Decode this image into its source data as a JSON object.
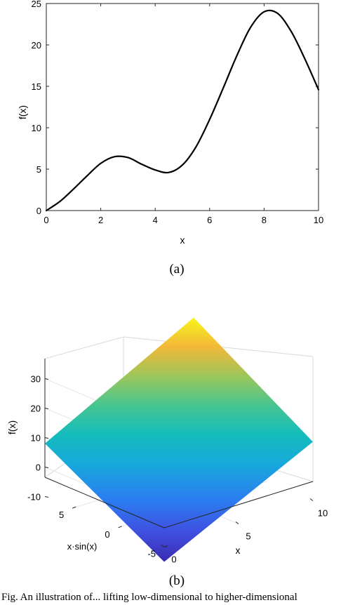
{
  "chart_data": [
    {
      "type": "line",
      "panel_label": "(a)",
      "xlabel": "x",
      "ylabel": "f(x)",
      "xlim": [
        0,
        10
      ],
      "ylim": [
        0,
        25
      ],
      "xticks": [
        "0",
        "2",
        "4",
        "6",
        "8",
        "10"
      ],
      "yticks": [
        "0",
        "5",
        "10",
        "15",
        "20",
        "25"
      ],
      "grid": false,
      "series": [
        {
          "x": [
            0,
            0.5,
            1,
            1.5,
            2,
            2.5,
            3,
            3.5,
            4,
            4.5,
            5,
            5.5,
            6,
            6.5,
            7,
            7.5,
            8,
            8.5,
            9,
            9.5,
            10
          ],
          "values": [
            0.0,
            1.1,
            2.6,
            4.2,
            5.7,
            6.5,
            6.4,
            5.6,
            4.9,
            4.6,
            5.5,
            7.7,
            11.0,
            14.8,
            18.7,
            22.1,
            24.0,
            23.8,
            21.6,
            18.3,
            14.6
          ]
        }
      ]
    },
    {
      "type": "surface",
      "panel_label": "(b)",
      "xlabel": "x",
      "ylabel": "x·sin(x)",
      "zlabel": "f(x)",
      "xlim": [
        0,
        10
      ],
      "ylim": [
        -5,
        8
      ],
      "zlim": [
        -10,
        30
      ],
      "xticks": [
        "0",
        "5",
        "10"
      ],
      "yticks": [
        "-5",
        "0",
        "5"
      ],
      "zticks": [
        "-10",
        "0",
        "10",
        "20",
        "30"
      ],
      "grid": true,
      "colormap": "parula",
      "corners": [
        {
          "x": 0,
          "y": -5,
          "z": -15
        },
        {
          "x": 10,
          "y": -5,
          "z": 10
        },
        {
          "x": 10,
          "y": 8,
          "z": 35
        },
        {
          "x": 0,
          "y": 8,
          "z": 8
        }
      ]
    }
  ],
  "caption": "Fig. An illustration of... lifting low-dimensional to higher-dimensional"
}
